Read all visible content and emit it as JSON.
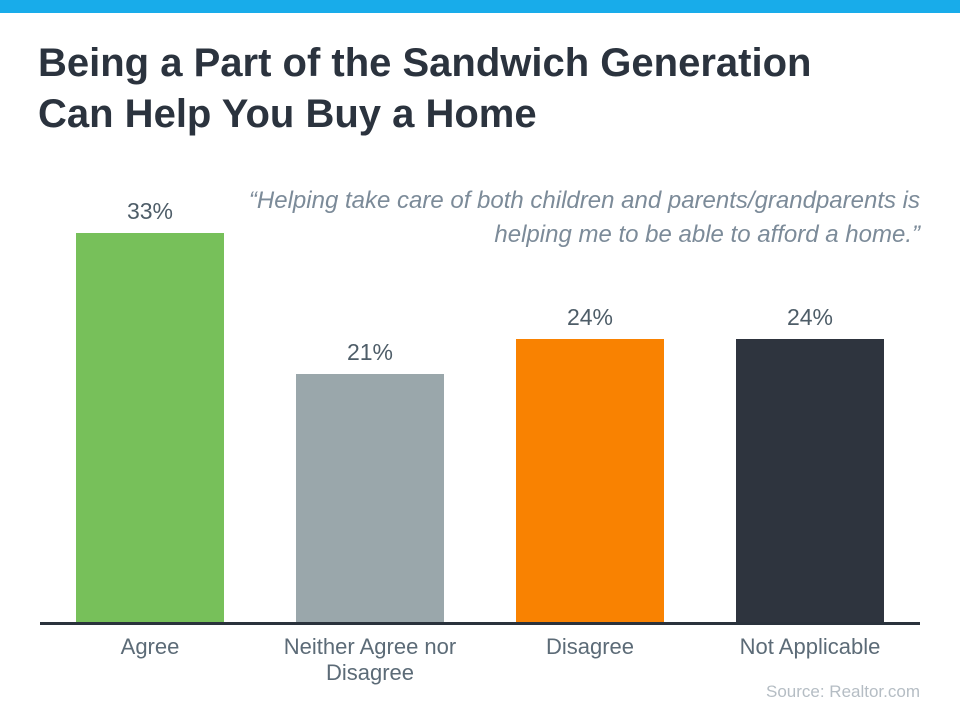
{
  "page": {
    "title": "Being a Part of the Sandwich Generation Can Help You Buy a Home",
    "quote": "“Helping take care of both children and parents/grandparents is helping me to be able to afford a home.”",
    "source": "Source: Realtor.com"
  },
  "colors": {
    "top_stripe": "#18ACEA",
    "title_text": "#2B333E",
    "quote_text": "#7C8B99",
    "value_label_text": "#4E5D68",
    "category_label_text": "#5C6B77",
    "axis_line": "#2A323C",
    "source_text": "#B5BDC4"
  },
  "chart_data": {
    "type": "bar",
    "title": "Being a Part of the Sandwich Generation Can Help You Buy a Home",
    "categories": [
      "Agree",
      "Neither Agree nor Disagree",
      "Disagree",
      "Not Applicable"
    ],
    "values": [
      33,
      21,
      24,
      24
    ],
    "value_labels": [
      "33%",
      "21%",
      "24%",
      "24%"
    ],
    "bar_colors": [
      "#77C05A",
      "#9AA7AB",
      "#F98201",
      "#2E343E"
    ],
    "annotation": "“Helping take care of both children and parents/grandparents is helping me to be able to afford a home.”",
    "xlabel": "",
    "ylabel": "",
    "ylim": [
      0,
      35
    ],
    "grid": false,
    "legend": false,
    "value_labels_position": "above-bars",
    "source": "Source: Realtor.com"
  }
}
